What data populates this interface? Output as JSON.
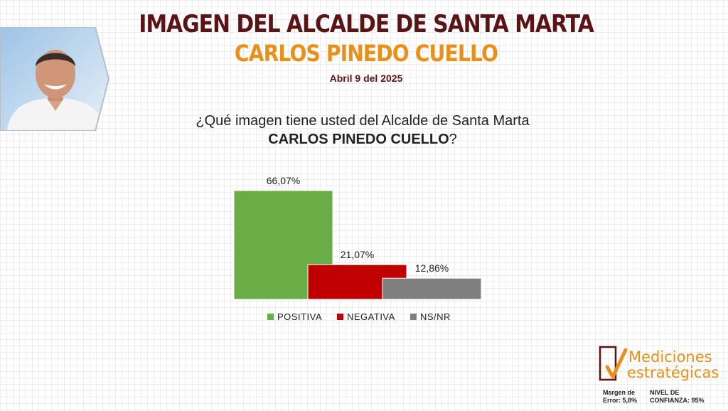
{
  "header": {
    "title": "IMAGEN DEL ALCALDE DE SANTA MARTA",
    "name": "CARLOS PINEDO CUELLO",
    "date": "Abril 9 del 2025"
  },
  "question": {
    "line1": "¿Qué imagen tiene usted del Alcalde de Santa Marta",
    "line2_bold": "CARLOS PINEDO CUELLO",
    "line2_suffix": "?"
  },
  "chart_data": {
    "type": "bar",
    "categories": [
      "POSITIVA",
      "NEGATIVA",
      "NS/NR"
    ],
    "values": [
      66.07,
      21.07,
      12.86
    ],
    "data_labels": [
      "66,07%",
      "21,07%",
      "12,86%"
    ],
    "colors": [
      "#6aac46",
      "#c00000",
      "#7f7f7f"
    ],
    "ylim": [
      0,
      66.07
    ],
    "legend_position": "bottom",
    "grid": false
  },
  "logo": {
    "line1": "Mediciones",
    "line2": "estratégicas",
    "color": "#e8901a"
  },
  "footer": {
    "margin_line1": "Margen de",
    "margin_line2": "Error: 5,8%",
    "confidence_line1": "NIVEL DE",
    "confidence_line2": "CONFIANZA: 95%"
  }
}
